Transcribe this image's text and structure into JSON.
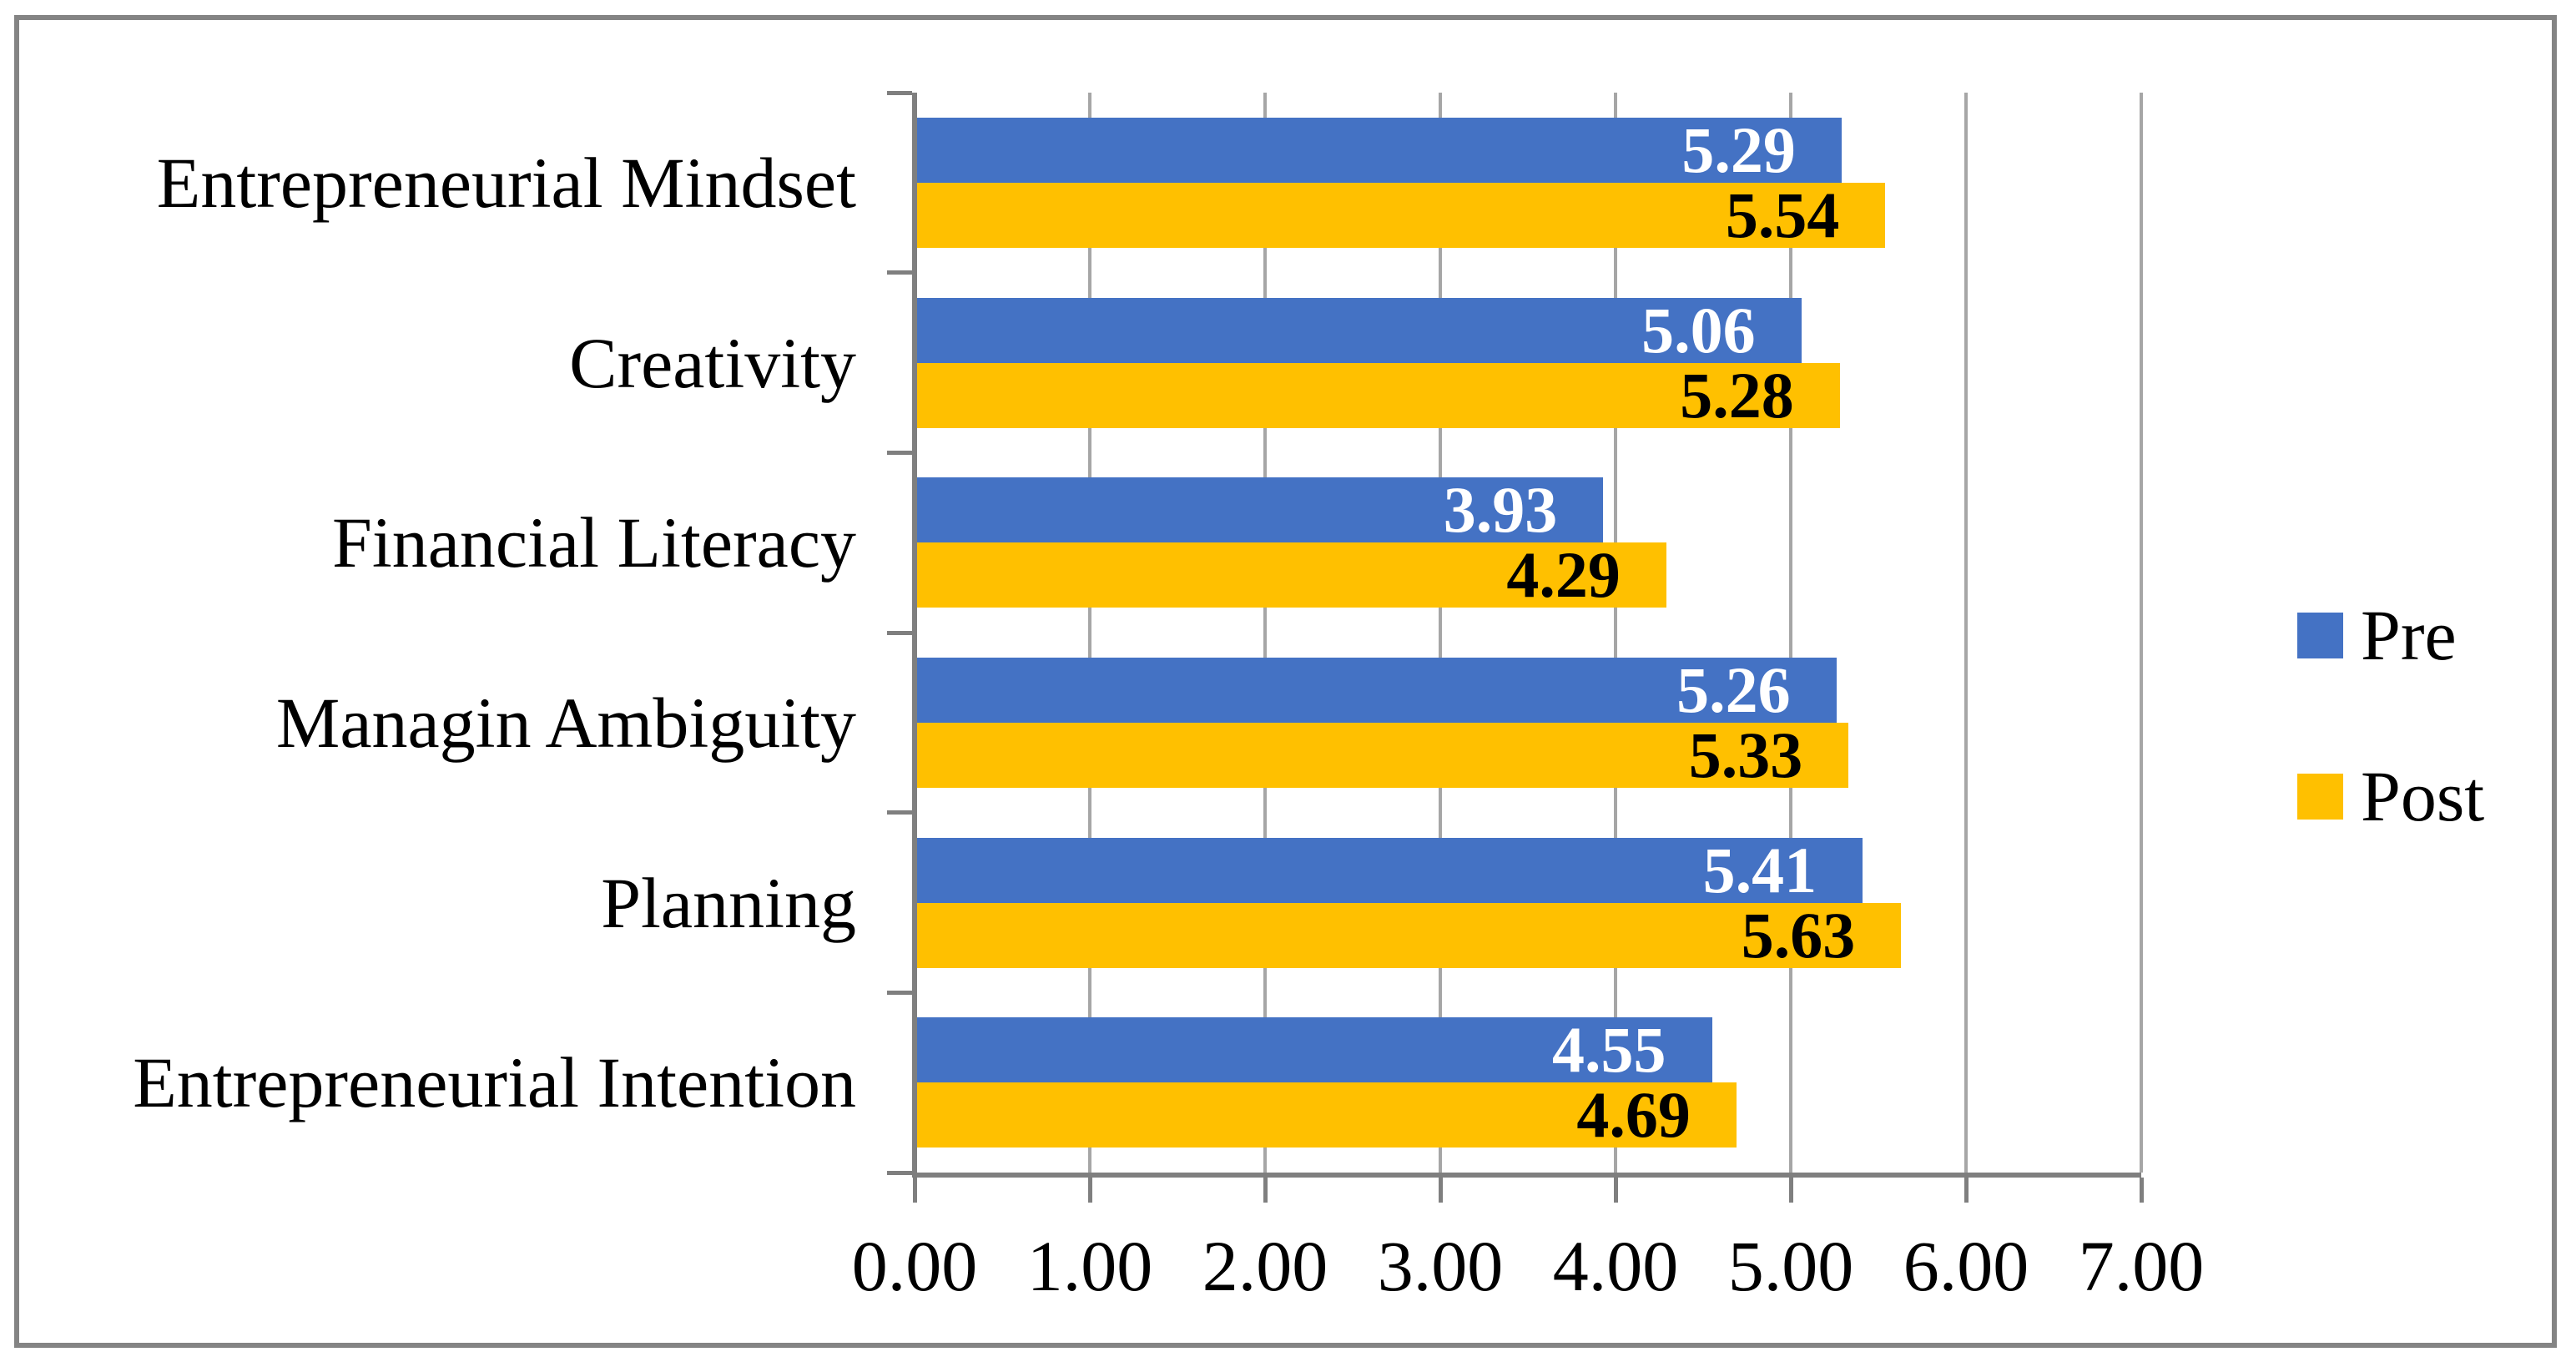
{
  "chart_data": {
    "type": "bar",
    "orientation": "horizontal",
    "title": "",
    "categories": [
      "Entrepreneurial Mindset",
      "Creativity",
      "Financial Literacy",
      "Managin Ambiguity",
      "Planning",
      "Entrepreneurial Intention"
    ],
    "series": [
      {
        "name": "Pre",
        "color": "#4472C4",
        "label_color": "#FFFFFF",
        "values": [
          5.29,
          5.06,
          3.93,
          5.26,
          5.41,
          4.55
        ],
        "labels": [
          "5.29",
          "5.06",
          "3.93",
          "5.26",
          "5.41",
          "4.55"
        ]
      },
      {
        "name": "Post",
        "color": "#FFC000",
        "label_color": "#000000",
        "values": [
          5.54,
          5.28,
          4.29,
          5.33,
          5.63,
          4.69
        ],
        "labels": [
          "5.54",
          "5.28",
          "4.29",
          "5.33",
          "5.63",
          "4.69"
        ]
      }
    ],
    "x_axis": {
      "min": 0,
      "max": 7,
      "tick_step": 1,
      "tick_labels": [
        "0.00",
        "1.00",
        "2.00",
        "3.00",
        "4.00",
        "5.00",
        "6.00",
        "7.00"
      ]
    },
    "legend": {
      "position": "right",
      "items": [
        "Pre",
        "Post"
      ]
    },
    "grid": true,
    "colors": {
      "gridline": "#A6A6A6",
      "axis": "#7F7F7F",
      "frame_border": "#848484",
      "background": "#FFFFFF"
    }
  }
}
